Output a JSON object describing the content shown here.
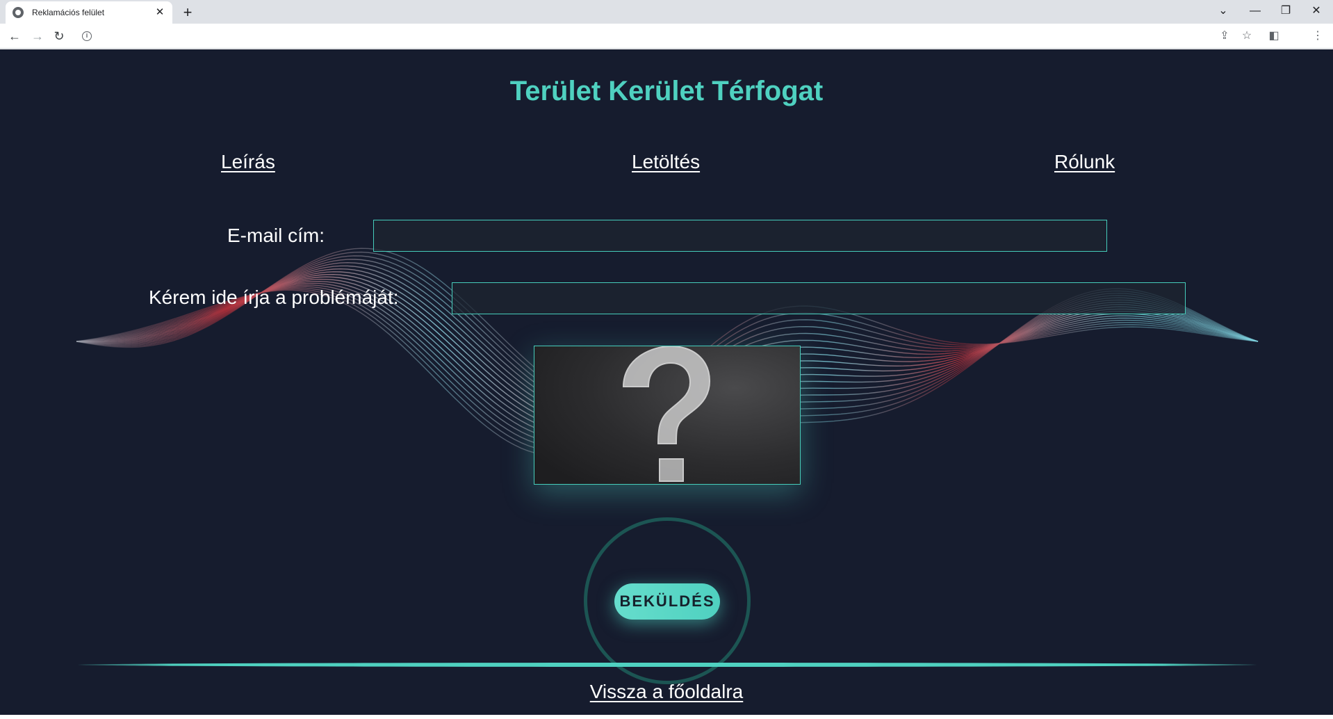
{
  "browser": {
    "tab_title": "Reklamációs felület",
    "tab_close": "✕",
    "new_tab": "+",
    "window_controls": {
      "list": "⌄",
      "minimize": "—",
      "restore": "❐",
      "close": "✕"
    },
    "nav": {
      "back": "←",
      "forward": "→",
      "reload": "↻"
    },
    "address": "",
    "toolbar_icons": {
      "share": "⇪",
      "bookmark": "☆",
      "sidepanel": "◧",
      "menu": "⋮"
    }
  },
  "page": {
    "title": "Terület Kerület Térfogat",
    "nav": {
      "leiras": "Leírás",
      "letoltes": "Letöltés",
      "rolunk": "Rólunk"
    },
    "form": {
      "email_label": "E-mail cím:",
      "email_value": "",
      "problem_label": "Kérem ide írja a problémáját:",
      "problem_value": "",
      "submit_label": "BEKÜLDÉS"
    },
    "image_icon": "question-mark-chalkboard",
    "back_link": "Vissza a főoldalra"
  },
  "colors": {
    "background": "#161c2e",
    "accent": "#4fd1c0",
    "wave_red": "#c0303a",
    "wave_cyan": "#7fd3e0"
  }
}
